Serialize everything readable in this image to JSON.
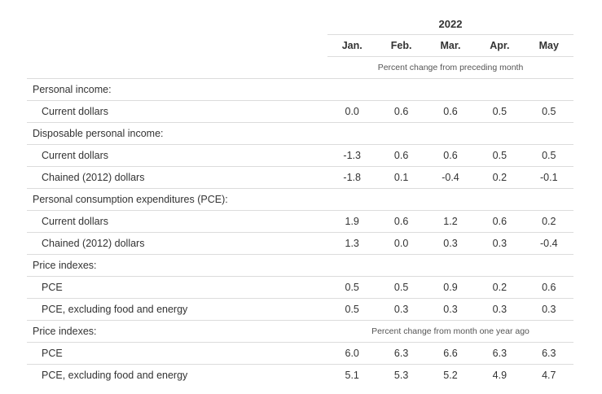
{
  "header": {
    "year": "2022",
    "months": [
      "Jan.",
      "Feb.",
      "Mar.",
      "Apr.",
      "May"
    ],
    "note_monthly": "Percent change from preceding month",
    "note_yearly": "Percent change from month one year ago"
  },
  "rows": [
    {
      "label": "Personal income:",
      "type": "section"
    },
    {
      "label": "Current dollars",
      "type": "data",
      "values": [
        "0.0",
        "0.6",
        "0.6",
        "0.5",
        "0.5"
      ]
    },
    {
      "label": "Disposable personal income:",
      "type": "section"
    },
    {
      "label": "Current dollars",
      "type": "data",
      "values": [
        "-1.3",
        "0.6",
        "0.6",
        "0.5",
        "0.5"
      ]
    },
    {
      "label": "Chained (2012) dollars",
      "type": "data",
      "values": [
        "-1.8",
        "0.1",
        "-0.4",
        "0.2",
        "-0.1"
      ]
    },
    {
      "label": "Personal consumption expenditures (PCE):",
      "type": "section"
    },
    {
      "label": "Current dollars",
      "type": "data",
      "values": [
        "1.9",
        "0.6",
        "1.2",
        "0.6",
        "0.2"
      ]
    },
    {
      "label": "Chained (2012) dollars",
      "type": "data",
      "values": [
        "1.3",
        "0.0",
        "0.3",
        "0.3",
        "-0.4"
      ]
    },
    {
      "label": "Price indexes:",
      "type": "section"
    },
    {
      "label": "PCE",
      "type": "data",
      "values": [
        "0.5",
        "0.5",
        "0.9",
        "0.2",
        "0.6"
      ]
    },
    {
      "label": "PCE, excluding food and energy",
      "type": "data",
      "values": [
        "0.5",
        "0.3",
        "0.3",
        "0.3",
        "0.3"
      ]
    },
    {
      "label": "Price indexes:",
      "type": "section",
      "note": "yearly"
    },
    {
      "label": "PCE",
      "type": "data",
      "values": [
        "6.0",
        "6.3",
        "6.6",
        "6.3",
        "6.3"
      ]
    },
    {
      "label": "PCE, excluding food and energy",
      "type": "data",
      "values": [
        "5.1",
        "5.3",
        "5.2",
        "4.9",
        "4.7"
      ]
    }
  ]
}
